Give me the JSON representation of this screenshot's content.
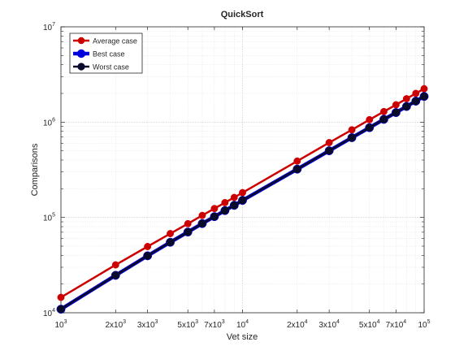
{
  "chart_data": {
    "type": "line",
    "title": "QuickSort",
    "xlabel": "Vet size",
    "ylabel": "Comparisons",
    "xscale": "log",
    "yscale": "log",
    "xlim": [
      1000,
      100000
    ],
    "ylim": [
      10000,
      10000000
    ],
    "grid": "on",
    "minor_grid": "on",
    "legend_position": "top-left",
    "x_ticks": [
      {
        "value": 1000,
        "base": "10",
        "exp": "3"
      },
      {
        "value": 2000,
        "base": "2x10",
        "exp": "3"
      },
      {
        "value": 3000,
        "base": "3x10",
        "exp": "3"
      },
      {
        "value": 5000,
        "base": "5x10",
        "exp": "3"
      },
      {
        "value": 7000,
        "base": "7x10",
        "exp": "3"
      },
      {
        "value": 10000,
        "base": "10",
        "exp": "4"
      },
      {
        "value": 20000,
        "base": "2x10",
        "exp": "4"
      },
      {
        "value": 30000,
        "base": "3x10",
        "exp": "4"
      },
      {
        "value": 50000,
        "base": "5x10",
        "exp": "4"
      },
      {
        "value": 70000,
        "base": "7x10",
        "exp": "4"
      },
      {
        "value": 100000,
        "base": "10",
        "exp": "5"
      }
    ],
    "y_ticks": [
      {
        "value": 10000,
        "base": "10",
        "exp": "4"
      },
      {
        "value": 100000,
        "base": "10",
        "exp": "5"
      },
      {
        "value": 1000000,
        "base": "10",
        "exp": "6"
      },
      {
        "value": 10000000,
        "base": "10",
        "exp": "7"
      }
    ],
    "x": [
      1000,
      2000,
      3000,
      4000,
      5000,
      6000,
      7000,
      8000,
      9000,
      10000,
      20000,
      30000,
      40000,
      50000,
      60000,
      70000,
      80000,
      90000,
      100000
    ],
    "series": [
      {
        "name": "Average case",
        "color": "#cc0000",
        "line_width": 2.5,
        "marker_size": 4.2,
        "values": [
          14500,
          31800,
          49500,
          67700,
          86000,
          105000,
          124000,
          143000,
          162000,
          182000,
          390000,
          610000,
          830000,
          1060000,
          1290000,
          1520000,
          1760000,
          2000000,
          2240000
        ]
      },
      {
        "name": "Best case",
        "color": "#0000dd",
        "line_width": 4.5,
        "marker_size": 5.2,
        "values": [
          10900,
          24700,
          39600,
          54900,
          70300,
          86200,
          102000,
          118000,
          134000,
          151000,
          321000,
          501000,
          687000,
          875000,
          1070000,
          1260000,
          1460000,
          1660000,
          1860000
        ]
      },
      {
        "name": "Worst case",
        "color": "#0a0a2a",
        "line_width": 2.5,
        "marker_size": 4.6,
        "values": [
          10900,
          24700,
          39600,
          54900,
          70300,
          86200,
          102000,
          118000,
          134000,
          151000,
          321000,
          501000,
          687000,
          875000,
          1070000,
          1260000,
          1460000,
          1660000,
          1860000
        ]
      }
    ]
  }
}
